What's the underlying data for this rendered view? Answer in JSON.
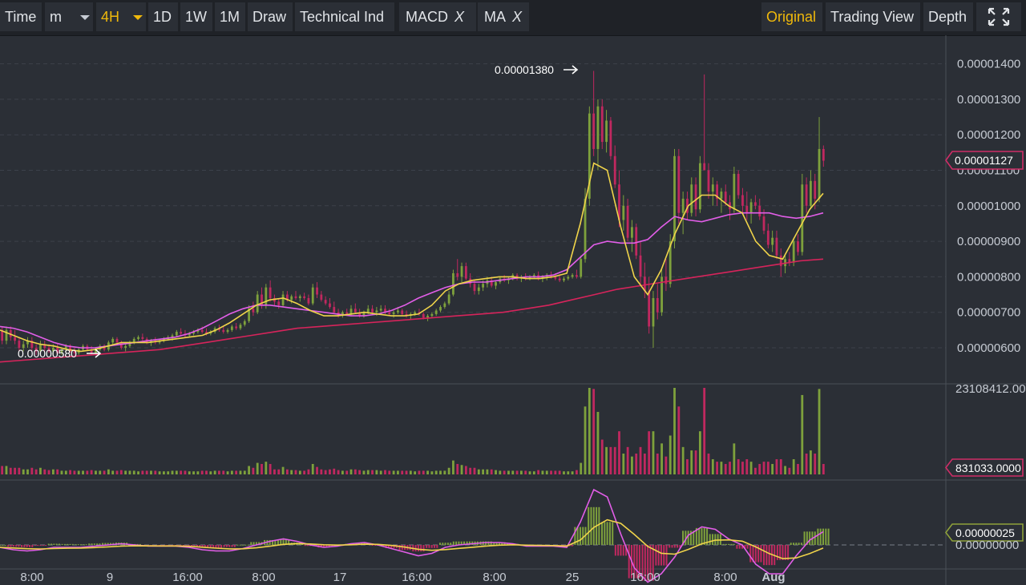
{
  "toolbar": {
    "time": "Time",
    "minute": "m",
    "interval": "4H",
    "day": "1D",
    "week": "1W",
    "month": "1M",
    "draw": "Draw",
    "technical": "Technical Ind",
    "indicators": [
      {
        "label": "MACD",
        "close": "X"
      },
      {
        "label": "MA",
        "close": "X"
      }
    ],
    "views": [
      "Original",
      "Trading View",
      "Depth"
    ],
    "active_view": "Original"
  },
  "colors": {
    "background": "#2b2f36",
    "grid": "#3c414a",
    "up": "#7ea13c",
    "down": "#c0285f",
    "ma_short": "#f0d44a",
    "ma_mid": "#e25ee8",
    "ma_long": "#d6245b",
    "accent": "#f0b90b",
    "price_tag": "#cf2d67",
    "macd_tag": "#8ea13a"
  },
  "chart_data": {
    "type": "candlestick",
    "price_axis": {
      "ticks": [
        "0.00000600",
        "0.00000700",
        "0.00000800",
        "0.00000900",
        "0.00001000",
        "0.00001100",
        "0.00001200",
        "0.00001300",
        "0.00001400"
      ],
      "range": [
        5.4e-06,
        1.44e-05
      ]
    },
    "last_price": "0.00001127",
    "high_annotation": "0.00001380",
    "low_annotation": "0.00000580",
    "volume_axis": {
      "top_label": "23108412.000",
      "last_label": "831033.0000"
    },
    "macd_axis": {
      "zero_label": "0.00000000",
      "last_label": "0.00000025"
    },
    "x_labels": [
      "8:00",
      "9",
      "16:00",
      "8:00",
      "17",
      "16:00",
      "8:00",
      "25",
      "16:00",
      "8:00",
      "Aug"
    ],
    "bold_x_label": "Aug",
    "ohlc": [
      [
        6.5,
        6.6,
        6.1,
        6.2
      ],
      [
        6.2,
        6.6,
        6.1,
        6.5
      ],
      [
        6.5,
        6.6,
        6.2,
        6.3
      ],
      [
        6.3,
        6.5,
        6.1,
        6.2
      ],
      [
        6.2,
        6.3,
        5.9,
        6.0
      ],
      [
        6.0,
        6.2,
        5.9,
        6.1
      ],
      [
        6.1,
        6.3,
        6.0,
        6.2
      ],
      [
        6.2,
        6.3,
        5.9,
        6.0
      ],
      [
        6.0,
        6.1,
        5.8,
        5.9
      ],
      [
        5.9,
        6.2,
        5.8,
        6.1
      ],
      [
        6.1,
        6.2,
        5.9,
        6.0
      ],
      [
        6.0,
        6.1,
        5.85,
        5.9
      ],
      [
        5.9,
        6.1,
        5.8,
        6.0
      ],
      [
        6.0,
        6.1,
        5.8,
        5.85
      ],
      [
        5.85,
        6.0,
        5.8,
        5.95
      ],
      [
        5.95,
        6.1,
        5.9,
        6.05
      ],
      [
        6.05,
        6.1,
        5.85,
        5.9
      ],
      [
        5.9,
        6.0,
        5.8,
        5.85
      ],
      [
        5.85,
        6.0,
        5.8,
        5.95
      ],
      [
        5.95,
        6.1,
        5.9,
        6.05
      ],
      [
        6.05,
        6.1,
        5.9,
        5.95
      ],
      [
        5.95,
        6.05,
        5.8,
        5.85
      ],
      [
        5.85,
        6.0,
        5.8,
        5.95
      ],
      [
        5.95,
        6.1,
        5.9,
        6.05
      ],
      [
        6.05,
        6.1,
        5.9,
        5.95
      ],
      [
        5.95,
        6.2,
        5.9,
        6.15
      ],
      [
        6.15,
        6.3,
        6.1,
        6.25
      ],
      [
        6.25,
        6.3,
        6.1,
        6.15
      ],
      [
        6.15,
        6.2,
        5.95,
        6.0
      ],
      [
        6.0,
        6.1,
        5.9,
        6.05
      ],
      [
        6.05,
        6.2,
        6.0,
        6.15
      ],
      [
        6.15,
        6.3,
        6.1,
        6.25
      ],
      [
        6.25,
        6.35,
        6.2,
        6.3
      ],
      [
        6.3,
        6.4,
        6.2,
        6.25
      ],
      [
        6.25,
        6.3,
        6.1,
        6.15
      ],
      [
        6.15,
        6.25,
        6.05,
        6.2
      ],
      [
        6.2,
        6.3,
        6.1,
        6.15
      ],
      [
        6.15,
        6.25,
        6.1,
        6.2
      ],
      [
        6.2,
        6.3,
        6.15,
        6.25
      ],
      [
        6.25,
        6.35,
        6.2,
        6.3
      ],
      [
        6.3,
        6.4,
        6.2,
        6.35
      ],
      [
        6.35,
        6.5,
        6.3,
        6.45
      ],
      [
        6.45,
        6.55,
        6.35,
        6.4
      ],
      [
        6.4,
        6.5,
        6.3,
        6.35
      ],
      [
        6.35,
        6.45,
        6.3,
        6.4
      ],
      [
        6.4,
        6.5,
        6.35,
        6.45
      ],
      [
        6.45,
        6.55,
        6.4,
        6.5
      ],
      [
        6.5,
        6.6,
        6.4,
        6.45
      ],
      [
        6.45,
        6.55,
        6.35,
        6.4
      ],
      [
        6.4,
        6.5,
        6.35,
        6.45
      ],
      [
        6.45,
        6.6,
        6.4,
        6.55
      ],
      [
        6.55,
        6.65,
        6.45,
        6.5
      ],
      [
        6.5,
        6.6,
        6.4,
        6.45
      ],
      [
        6.45,
        6.55,
        6.4,
        6.5
      ],
      [
        6.5,
        6.65,
        6.45,
        6.6
      ],
      [
        6.6,
        6.7,
        6.5,
        6.55
      ],
      [
        6.55,
        6.7,
        6.5,
        6.65
      ],
      [
        6.65,
        6.8,
        6.6,
        6.75
      ],
      [
        6.75,
        7.2,
        6.7,
        7.1
      ],
      [
        7.1,
        7.3,
        6.9,
        7.0
      ],
      [
        7.0,
        7.6,
        6.95,
        7.5
      ],
      [
        7.5,
        7.7,
        7.1,
        7.2
      ],
      [
        7.2,
        7.8,
        7.1,
        7.7
      ],
      [
        7.7,
        7.9,
        7.3,
        7.4
      ],
      [
        7.4,
        7.5,
        7.2,
        7.3
      ],
      [
        7.3,
        7.4,
        7.1,
        7.2
      ],
      [
        7.2,
        7.6,
        7.15,
        7.5
      ],
      [
        7.5,
        7.6,
        7.3,
        7.35
      ],
      [
        7.35,
        7.5,
        7.25,
        7.45
      ],
      [
        7.45,
        7.6,
        7.35,
        7.4
      ],
      [
        7.4,
        7.5,
        7.3,
        7.45
      ],
      [
        7.45,
        7.55,
        7.35,
        7.4
      ],
      [
        7.4,
        7.5,
        7.2,
        7.25
      ],
      [
        7.25,
        7.8,
        7.2,
        7.7
      ],
      [
        7.7,
        7.85,
        7.4,
        7.5
      ],
      [
        7.5,
        7.6,
        7.3,
        7.35
      ],
      [
        7.35,
        7.45,
        7.2,
        7.25
      ],
      [
        7.25,
        7.4,
        7.1,
        7.15
      ],
      [
        7.15,
        7.3,
        6.95,
        7.0
      ],
      [
        7.0,
        7.1,
        6.85,
        6.9
      ],
      [
        6.9,
        7.05,
        6.85,
        7.0
      ],
      [
        7.0,
        7.1,
        6.9,
        6.95
      ],
      [
        6.95,
        7.2,
        6.9,
        7.1
      ],
      [
        7.1,
        7.25,
        6.95,
        7.0
      ],
      [
        7.0,
        7.1,
        6.85,
        6.9
      ],
      [
        6.9,
        7.05,
        6.85,
        7.0
      ],
      [
        7.0,
        7.2,
        6.95,
        7.1
      ],
      [
        7.1,
        7.2,
        6.95,
        7.0
      ],
      [
        7.0,
        7.15,
        6.9,
        7.05
      ],
      [
        7.05,
        7.2,
        7.0,
        7.1
      ],
      [
        7.1,
        7.2,
        6.95,
        7.0
      ],
      [
        7.0,
        7.1,
        6.9,
        6.95
      ],
      [
        6.95,
        7.05,
        6.85,
        7.0
      ],
      [
        7.0,
        7.15,
        6.95,
        7.05
      ],
      [
        7.05,
        7.1,
        6.9,
        6.95
      ],
      [
        6.95,
        7.05,
        6.85,
        6.9
      ],
      [
        6.9,
        7.0,
        6.8,
        6.95
      ],
      [
        6.95,
        7.05,
        6.9,
        7.0
      ],
      [
        7.0,
        7.1,
        6.9,
        6.95
      ],
      [
        6.95,
        7.0,
        6.8,
        6.85
      ],
      [
        6.85,
        6.95,
        6.75,
        6.9
      ],
      [
        6.9,
        7.0,
        6.85,
        6.95
      ],
      [
        6.95,
        7.1,
        6.9,
        7.05
      ],
      [
        7.05,
        7.2,
        7.0,
        7.15
      ],
      [
        7.15,
        7.3,
        7.1,
        7.25
      ],
      [
        7.25,
        7.6,
        7.2,
        7.5
      ],
      [
        7.5,
        8.2,
        7.45,
        8.1
      ],
      [
        8.1,
        8.5,
        7.9,
        8.0
      ],
      [
        8.0,
        8.4,
        7.85,
        8.3
      ],
      [
        8.3,
        8.4,
        7.9,
        7.95
      ],
      [
        7.95,
        8.1,
        7.7,
        7.8
      ],
      [
        7.8,
        7.9,
        7.5,
        7.6
      ],
      [
        7.6,
        7.8,
        7.5,
        7.7
      ],
      [
        7.7,
        7.9,
        7.6,
        7.8
      ],
      [
        7.8,
        8.0,
        7.7,
        7.9
      ],
      [
        7.9,
        8.0,
        7.7,
        7.75
      ],
      [
        7.75,
        7.9,
        7.65,
        7.85
      ],
      [
        7.85,
        8.0,
        7.8,
        7.95
      ],
      [
        7.95,
        8.05,
        7.85,
        7.9
      ],
      [
        7.9,
        8.0,
        7.8,
        7.95
      ],
      [
        7.95,
        8.1,
        7.9,
        8.05
      ],
      [
        8.05,
        8.1,
        7.9,
        7.95
      ],
      [
        7.95,
        8.05,
        7.85,
        8.0
      ],
      [
        8.0,
        8.1,
        7.9,
        7.95
      ],
      [
        7.95,
        8.05,
        7.9,
        8.0
      ],
      [
        8.0,
        8.1,
        7.95,
        8.05
      ],
      [
        8.05,
        8.15,
        7.9,
        7.95
      ],
      [
        7.95,
        8.05,
        7.85,
        8.0
      ],
      [
        8.0,
        8.1,
        7.9,
        8.05
      ],
      [
        8.05,
        8.15,
        7.95,
        8.0
      ],
      [
        8.0,
        8.1,
        7.9,
        7.95
      ],
      [
        7.95,
        8.05,
        7.85,
        7.9
      ],
      [
        7.9,
        8.0,
        7.85,
        7.95
      ],
      [
        7.95,
        8.05,
        7.9,
        8.0
      ],
      [
        8.0,
        8.1,
        7.95,
        8.05
      ],
      [
        8.05,
        8.2,
        7.95,
        8.0
      ],
      [
        8.0,
        8.6,
        7.95,
        8.5
      ],
      [
        8.5,
        10.5,
        8.4,
        10.2
      ],
      [
        10.2,
        12.8,
        10.0,
        12.6
      ],
      [
        12.6,
        13.8,
        11.4,
        11.6
      ],
      [
        11.6,
        13.0,
        11.0,
        12.8
      ],
      [
        12.8,
        13.0,
        11.6,
        11.8
      ],
      [
        11.8,
        12.7,
        11.5,
        12.4
      ],
      [
        12.4,
        12.5,
        11.3,
        11.4
      ],
      [
        11.4,
        11.7,
        10.5,
        10.6
      ],
      [
        10.6,
        11.0,
        9.4,
        9.6
      ],
      [
        9.6,
        10.3,
        9.3,
        10.0
      ],
      [
        10.0,
        10.2,
        9.0,
        9.1
      ],
      [
        9.1,
        9.6,
        8.7,
        9.4
      ],
      [
        9.4,
        9.5,
        8.5,
        8.6
      ],
      [
        8.6,
        9.0,
        7.8,
        8.0
      ],
      [
        8.0,
        8.4,
        7.4,
        7.6
      ],
      [
        7.6,
        8.0,
        6.4,
        6.6
      ],
      [
        6.6,
        7.6,
        6.0,
        7.4
      ],
      [
        7.4,
        7.8,
        6.8,
        7.0
      ],
      [
        7.0,
        8.2,
        6.9,
        8.0
      ],
      [
        8.0,
        8.5,
        7.6,
        7.8
      ],
      [
        7.8,
        9.2,
        7.7,
        9.0
      ],
      [
        9.0,
        11.6,
        8.8,
        11.4
      ],
      [
        11.4,
        11.6,
        9.5,
        9.8
      ],
      [
        9.8,
        10.4,
        9.2,
        10.2
      ],
      [
        10.2,
        10.4,
        9.6,
        9.8
      ],
      [
        9.8,
        10.8,
        9.7,
        10.6
      ],
      [
        10.6,
        10.8,
        9.7,
        9.9
      ],
      [
        9.9,
        11.4,
        9.8,
        11.2
      ],
      [
        11.2,
        13.7,
        11.0,
        11.0
      ],
      [
        11.0,
        11.2,
        10.2,
        10.4
      ],
      [
        10.4,
        10.8,
        10.0,
        10.6
      ],
      [
        10.6,
        10.7,
        10.0,
        10.2
      ],
      [
        10.2,
        10.5,
        9.8,
        10.4
      ],
      [
        10.4,
        10.6,
        10.0,
        10.1
      ],
      [
        10.1,
        10.3,
        9.6,
        9.9
      ],
      [
        9.9,
        11.1,
        9.8,
        10.9
      ],
      [
        10.9,
        11.0,
        10.2,
        10.3
      ],
      [
        10.3,
        10.5,
        9.8,
        10.0
      ],
      [
        10.0,
        10.4,
        9.6,
        9.8
      ],
      [
        9.8,
        10.2,
        9.5,
        10.1
      ],
      [
        10.1,
        10.3,
        9.9,
        10.0
      ],
      [
        10.0,
        10.2,
        9.6,
        9.7
      ],
      [
        9.7,
        9.9,
        9.2,
        9.3
      ],
      [
        9.3,
        9.5,
        8.8,
        8.9
      ],
      [
        8.9,
        9.3,
        8.7,
        9.1
      ],
      [
        9.1,
        9.3,
        8.5,
        8.6
      ],
      [
        8.6,
        8.8,
        8.0,
        8.3
      ],
      [
        8.3,
        8.6,
        8.1,
        8.5
      ],
      [
        8.5,
        8.7,
        8.3,
        8.4
      ],
      [
        8.4,
        9.1,
        8.3,
        9.0
      ],
      [
        9.0,
        9.2,
        8.6,
        8.7
      ],
      [
        8.7,
        10.9,
        8.6,
        10.6
      ],
      [
        10.6,
        10.8,
        9.8,
        10.0
      ],
      [
        10.0,
        11.0,
        9.9,
        10.7
      ],
      [
        10.7,
        10.9,
        9.9,
        10.2
      ],
      [
        10.2,
        12.5,
        10.1,
        11.6
      ],
      [
        11.6,
        11.7,
        11.1,
        11.27
      ]
    ],
    "ma_short": [
      6.5,
      6.35,
      6.2,
      6.1,
      6.05,
      5.95,
      5.9,
      5.95,
      6.05,
      6.15,
      6.15,
      6.15,
      6.2,
      6.25,
      6.3,
      6.35,
      6.5,
      6.7,
      6.95,
      7.2,
      7.35,
      7.4,
      7.25,
      7.05,
      6.9,
      6.9,
      6.95,
      7.0,
      6.95,
      6.9,
      6.9,
      6.95,
      7.2,
      7.6,
      7.8,
      7.9,
      7.95,
      8.0,
      8.0,
      7.95,
      7.95,
      8.0,
      8.1,
      9.5,
      11.2,
      11.0,
      9.4,
      8.0,
      7.5,
      8.2,
      9.2,
      10.0,
      10.3,
      10.3,
      10.0,
      9.8,
      9.0,
      8.6,
      8.5,
      9.2,
      9.9,
      10.35
    ],
    "ma_mid": [
      6.6,
      6.55,
      6.45,
      6.3,
      6.15,
      6.05,
      6.0,
      6.0,
      6.05,
      6.1,
      6.15,
      6.2,
      6.25,
      6.3,
      6.4,
      6.55,
      6.75,
      6.95,
      7.1,
      7.2,
      7.2,
      7.15,
      7.1,
      7.05,
      7.0,
      6.95,
      6.9,
      6.9,
      6.95,
      7.05,
      7.2,
      7.4,
      7.55,
      7.7,
      7.8,
      7.85,
      7.85,
      7.9,
      7.95,
      8.0,
      8.0,
      8.05,
      8.2,
      8.55,
      8.9,
      9.0,
      8.95,
      8.95,
      9.05,
      9.4,
      9.7,
      9.6,
      9.55,
      9.65,
      9.75,
      9.8,
      9.8,
      9.8,
      9.7,
      9.65,
      9.7,
      9.8
    ],
    "ma_long": [
      5.6,
      5.65,
      5.7,
      5.75,
      5.8,
      5.85,
      5.9,
      5.95,
      6.05,
      6.15,
      6.25,
      6.35,
      6.45,
      6.55,
      6.6,
      6.65,
      6.7,
      6.75,
      6.8,
      6.85,
      6.9,
      6.95,
      7.0,
      7.1,
      7.2,
      7.35,
      7.5,
      7.65,
      7.75,
      7.85,
      7.95,
      8.05,
      8.15,
      8.25,
      8.35,
      8.45,
      8.5
    ]
  }
}
